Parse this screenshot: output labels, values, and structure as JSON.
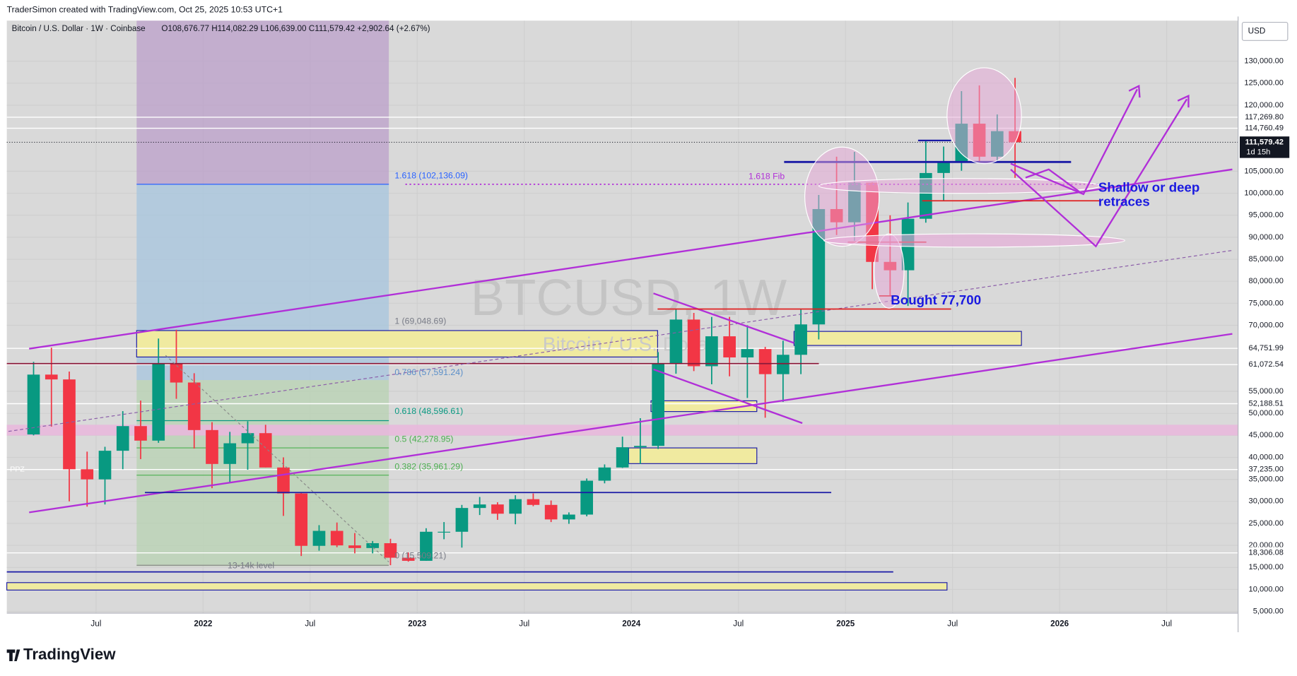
{
  "header": {
    "credit": "TraderSimon created with TradingView.com, Oct 25, 2025 10:53 UTC+1",
    "brand": "TradingView"
  },
  "chart_data": {
    "type": "candlestick",
    "title": "Bitcoin / U.S. Dollar · 1W · Coinbase",
    "ohlc_line": "O108,676.77 H114,082.29 L106,639.00 C111,579.42 +2,902.64 (+2.67%)",
    "watermark": "BTCUSD, 1W",
    "watermark_sub": "Bitcoin / U.S. Dollar",
    "currency": "USD",
    "up_color": "#089981",
    "down_color": "#f23645",
    "grid": true,
    "x": [
      "2021-03",
      "2021-04",
      "2021-05",
      "2021-06",
      "2021-07",
      "2021-08",
      "2021-09",
      "2021-10",
      "2021-11",
      "2021-12",
      "2022-01",
      "2022-02",
      "2022-03",
      "2022-04",
      "2022-05",
      "2022-06",
      "2022-07",
      "2022-08",
      "2022-09",
      "2022-10",
      "2022-11",
      "2022-12",
      "2023-01",
      "2023-02",
      "2023-03",
      "2023-04",
      "2023-05",
      "2023-06",
      "2023-07",
      "2023-08",
      "2023-09",
      "2023-10",
      "2023-11",
      "2023-12",
      "2024-01",
      "2024-02",
      "2024-03",
      "2024-04",
      "2024-05",
      "2024-06",
      "2024-07",
      "2024-08",
      "2024-09",
      "2024-10",
      "2024-11",
      "2024-12",
      "2025-01",
      "2025-02",
      "2025-03",
      "2025-04",
      "2025-05",
      "2025-06",
      "2025-07",
      "2025-08",
      "2025-09",
      "2025-10"
    ],
    "open": [
      45200,
      58800,
      57700,
      37300,
      35000,
      41500,
      47100,
      43800,
      61300,
      57000,
      46200,
      38500,
      43200,
      45500,
      37700,
      31800,
      19900,
      23300,
      20000,
      19400,
      20500,
      17200,
      16500,
      23100,
      23100,
      28500,
      29300,
      27200,
      30500,
      29200,
      25900,
      27000,
      34700,
      37700,
      42300,
      42600,
      61200,
      71300,
      60700,
      67500,
      62700,
      64600,
      58900,
      63300,
      70200,
      96400,
      93400,
      102400,
      84400,
      82500,
      94200,
      104600,
      107100,
      115800,
      108300,
      114100
    ],
    "high": [
      61700,
      64900,
      59500,
      41300,
      42400,
      50500,
      52900,
      67000,
      69000,
      59100,
      48000,
      45800,
      48200,
      47400,
      40000,
      31900,
      24600,
      25200,
      22800,
      21000,
      21500,
      18400,
      23900,
      25300,
      29200,
      31000,
      29800,
      31400,
      31800,
      30200,
      27500,
      35200,
      38400,
      44700,
      48900,
      63900,
      73800,
      72800,
      71900,
      71900,
      70000,
      65100,
      66500,
      73600,
      99600,
      108300,
      109400,
      102500,
      95000,
      97900,
      111900,
      110600,
      123200,
      124500,
      117900,
      126200
    ],
    "low": [
      45000,
      47000,
      30000,
      28800,
      29300,
      37300,
      39600,
      43300,
      53300,
      42000,
      33000,
      34300,
      37200,
      37700,
      26700,
      17600,
      18800,
      19600,
      18200,
      18200,
      15500,
      16300,
      16500,
      21400,
      19500,
      26900,
      25800,
      24800,
      28900,
      25300,
      24900,
      26600,
      34100,
      37600,
      38500,
      41900,
      59000,
      59600,
      56600,
      58400,
      53500,
      49000,
      52600,
      58900,
      66800,
      90500,
      89200,
      78200,
      76600,
      74400,
      93300,
      98200,
      105100,
      107300,
      107300,
      103500
    ],
    "close": [
      58800,
      57700,
      37300,
      35000,
      41500,
      47100,
      43800,
      61300,
      57000,
      46200,
      38500,
      43200,
      45500,
      37700,
      31800,
      19900,
      23300,
      20000,
      19400,
      20500,
      17200,
      16500,
      23100,
      23100,
      28500,
      29300,
      27200,
      30500,
      29200,
      25900,
      27000,
      34700,
      37700,
      42300,
      42600,
      61200,
      71300,
      60700,
      67500,
      62700,
      64600,
      58900,
      63300,
      70200,
      96400,
      93400,
      102400,
      84400,
      82500,
      94200,
      104600,
      107100,
      115800,
      108300,
      114100,
      111579.42
    ],
    "xlim": [
      "2021-02",
      "2026-11"
    ],
    "xticks": [
      {
        "value": "2021-07",
        "label": "Jul"
      },
      {
        "value": "2022-01",
        "label": "2022"
      },
      {
        "value": "2022-07",
        "label": "Jul"
      },
      {
        "value": "2023-01",
        "label": "2023"
      },
      {
        "value": "2023-07",
        "label": "Jul"
      },
      {
        "value": "2024-01",
        "label": "2024"
      },
      {
        "value": "2024-07",
        "label": "Jul"
      },
      {
        "value": "2025-01",
        "label": "2025"
      },
      {
        "value": "2025-07",
        "label": "Jul"
      },
      {
        "value": "2026-01",
        "label": "2026"
      },
      {
        "value": "2026-07",
        "label": "Jul"
      }
    ],
    "ylim": [
      4600,
      139200
    ],
    "yticks": [
      {
        "value": 130000,
        "label": "130,000.00"
      },
      {
        "value": 125000,
        "label": "125,000.00"
      },
      {
        "value": 120000,
        "label": "120,000.00"
      },
      {
        "value": 105000,
        "label": "105,000.00"
      },
      {
        "value": 100000,
        "label": "100,000.00"
      },
      {
        "value": 95000,
        "label": "95,000.00"
      },
      {
        "value": 90000,
        "label": "90,000.00"
      },
      {
        "value": 85000,
        "label": "85,000.00"
      },
      {
        "value": 80000,
        "label": "80,000.00"
      },
      {
        "value": 75000,
        "label": "75,000.00"
      },
      {
        "value": 70000,
        "label": "70,000.00"
      },
      {
        "value": 55000,
        "label": "55,000.00"
      },
      {
        "value": 50000,
        "label": "50,000.00"
      },
      {
        "value": 45000,
        "label": "45,000.00"
      },
      {
        "value": 40000,
        "label": "40,000.00"
      },
      {
        "value": 35000,
        "label": "35,000.00"
      },
      {
        "value": 30000,
        "label": "30,000.00"
      },
      {
        "value": 25000,
        "label": "25,000.00"
      },
      {
        "value": 20000,
        "label": "20,000.00"
      },
      {
        "value": 15000,
        "label": "15,000.00"
      },
      {
        "value": 10000,
        "label": "10,000.00"
      },
      {
        "value": 5000,
        "label": "5,000.00"
      }
    ],
    "levels": [
      {
        "value": 117269.8,
        "label": "117,269.80"
      },
      {
        "value": 114760.49,
        "label": "114,760.49"
      },
      {
        "value": 64751.99,
        "label": "64,751.99"
      },
      {
        "value": 61072.54,
        "label": "61,072.54"
      },
      {
        "value": 52188.51,
        "label": "52,188.51"
      },
      {
        "value": 37235,
        "label": "37,235.00"
      },
      {
        "value": 18306.08,
        "label": "18,306.08"
      }
    ],
    "last_price": {
      "value": 111579.42,
      "label": "111,579.42",
      "countdown": "1d 15h"
    },
    "annotations": {
      "fib_1618": "1.618 (102,136.09)",
      "fib_1": "1 (69,048.69)",
      "fib_0786": "0.786 (57,591.24)",
      "fib_0618": "0.618 (48,596.61)",
      "fib_05": "0.5 (42,278.95)",
      "fib_0382": "0.382 (35,961.29)",
      "fib_0": "0 (15,509.21)",
      "level_13_14k": "13-14k level",
      "fib_label": "1.618 Fib",
      "retraces": [
        "Shallow or deep",
        "retraces"
      ],
      "bought": "Bought 77,700",
      "ppz": "PPZ"
    }
  }
}
